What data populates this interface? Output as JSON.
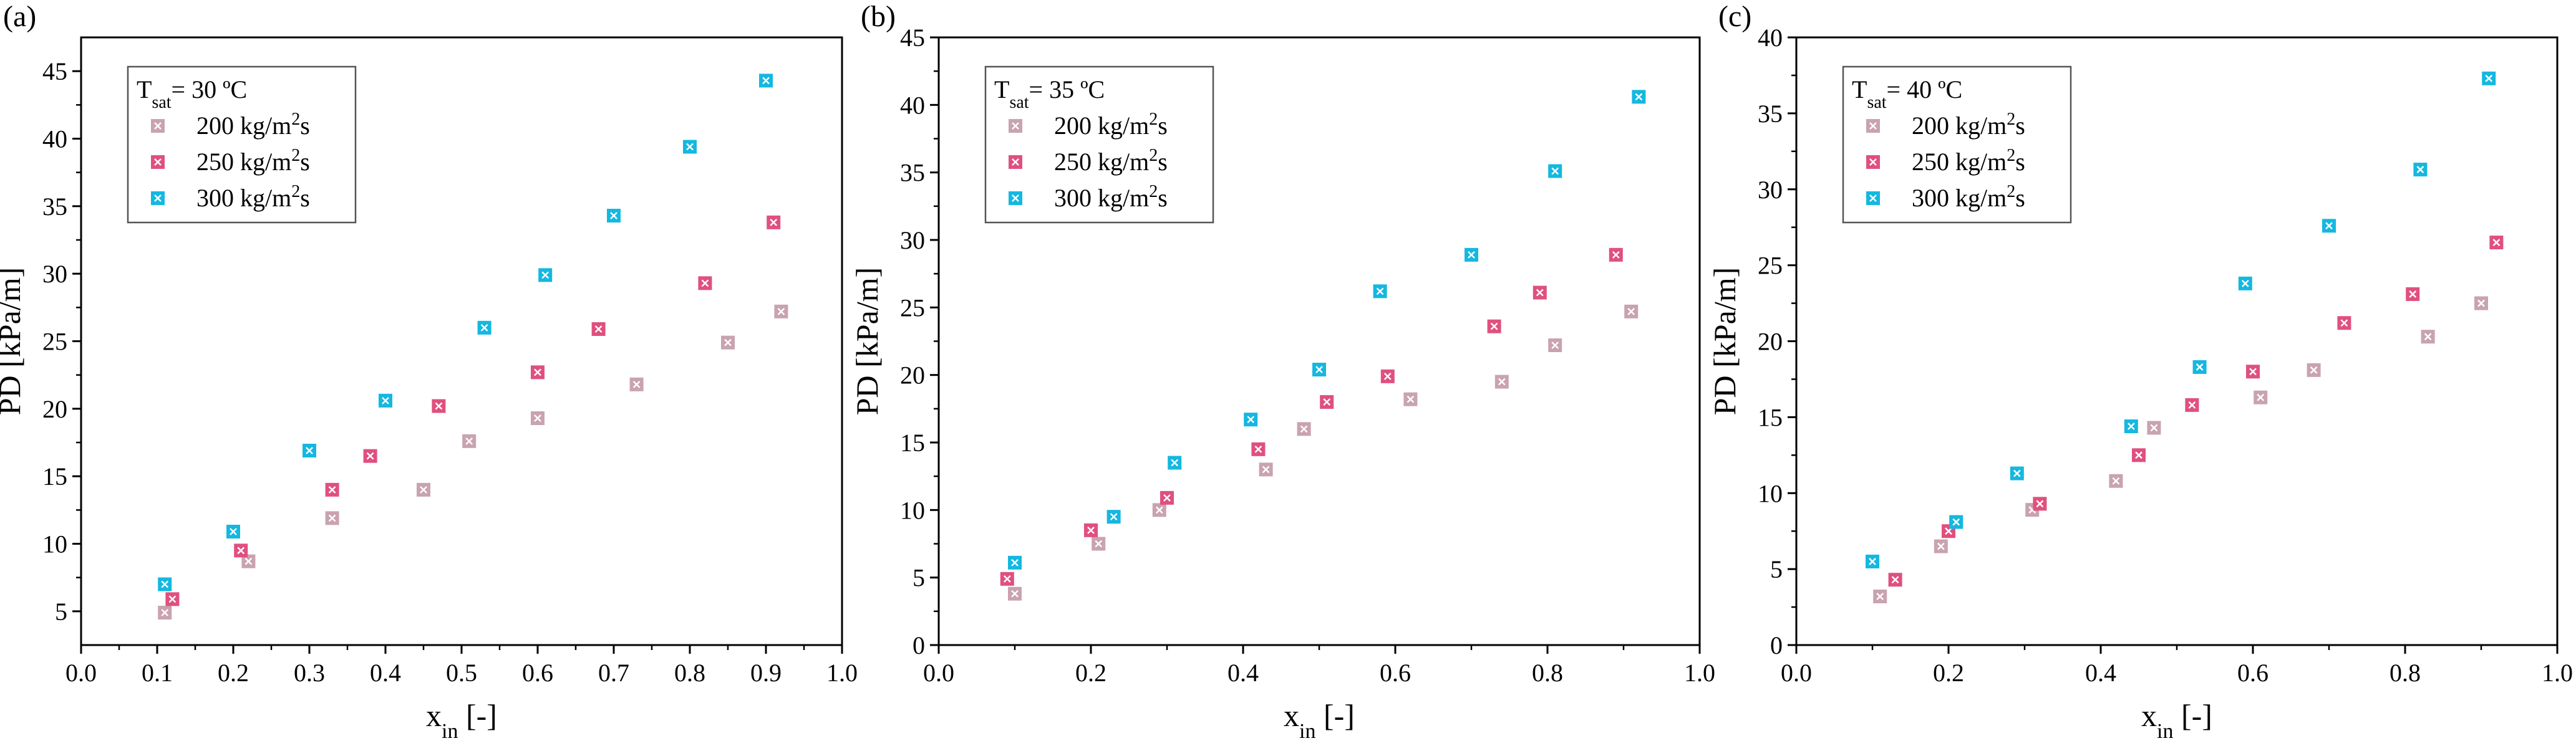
{
  "chart_data": [
    {
      "type": "scatter",
      "panel_label": "(a)",
      "legend_title": {
        "base": "T",
        "sub": "sat",
        "rest": "= 30 ºC"
      },
      "xlabel": {
        "base": "x",
        "sub": "in",
        "rest": " [-]"
      },
      "ylabel": "PD [kPa/m]",
      "xlim": [
        0.0,
        1.0
      ],
      "ylim": [
        2.5,
        47.5
      ],
      "xticks": [
        0.0,
        0.1,
        0.2,
        0.3,
        0.4,
        0.5,
        0.6,
        0.7,
        0.8,
        0.9,
        1.0
      ],
      "xtick_labels": [
        "0.0",
        "0.1",
        "0.2",
        "0.3",
        "0.4",
        "0.5",
        "0.6",
        "0.7",
        "0.8",
        "0.9",
        "1.0"
      ],
      "yticks": [
        5,
        10,
        15,
        20,
        25,
        30,
        35,
        40,
        45
      ],
      "ytick_labels": [
        "5",
        "10",
        "15",
        "20",
        "25",
        "30",
        "35",
        "40",
        "45"
      ],
      "series": [
        {
          "name": "200 kg/m2s",
          "label": {
            "pre": "200 kg/m",
            "sup": "2",
            "post": "s"
          },
          "color": "#C9A3AF",
          "x": [
            0.11,
            0.22,
            0.33,
            0.45,
            0.51,
            0.6,
            0.73,
            0.85,
            0.92
          ],
          "y": [
            4.9,
            8.7,
            11.9,
            14.0,
            17.6,
            19.3,
            21.8,
            24.9,
            27.2
          ]
        },
        {
          "name": "250 kg/m2s",
          "label": {
            "pre": "250 kg/m",
            "sup": "2",
            "post": "s"
          },
          "color": "#E0507F",
          "x": [
            0.12,
            0.21,
            0.33,
            0.38,
            0.47,
            0.6,
            0.68,
            0.82,
            0.91
          ],
          "y": [
            5.9,
            9.5,
            14.0,
            16.5,
            20.2,
            22.7,
            25.9,
            29.3,
            33.8
          ]
        },
        {
          "name": "300 kg/m2s",
          "label": {
            "pre": "300 kg/m",
            "sup": "2",
            "post": "s"
          },
          "color": "#14B8E0",
          "x": [
            0.11,
            0.2,
            0.3,
            0.4,
            0.53,
            0.61,
            0.7,
            0.8,
            0.9
          ],
          "y": [
            7.0,
            10.9,
            16.9,
            20.6,
            26.0,
            29.9,
            34.3,
            39.4,
            44.3
          ]
        }
      ]
    },
    {
      "type": "scatter",
      "panel_label": "(b)",
      "legend_title": {
        "base": "T",
        "sub": "sat",
        "rest": "= 35 ºC"
      },
      "xlabel": {
        "base": "x",
        "sub": "in",
        "rest": " [-]"
      },
      "ylabel": "PD [kPa/m]",
      "xlim": [
        0.0,
        1.0
      ],
      "ylim": [
        0,
        45
      ],
      "xticks": [
        0.0,
        0.2,
        0.4,
        0.6,
        0.8,
        1.0
      ],
      "xtick_labels": [
        "0.0",
        "0.2",
        "0.4",
        "0.6",
        "0.8",
        "1.0"
      ],
      "yticks": [
        0,
        5,
        10,
        15,
        20,
        25,
        30,
        35,
        40,
        45
      ],
      "ytick_labels": [
        "0",
        "5",
        "10",
        "15",
        "20",
        "25",
        "30",
        "35",
        "40",
        "45"
      ],
      "series": [
        {
          "name": "200 kg/m2s",
          "label": {
            "pre": "200 kg/m",
            "sup": "2",
            "post": "s"
          },
          "color": "#C9A3AF",
          "x": [
            0.1,
            0.21,
            0.29,
            0.43,
            0.48,
            0.62,
            0.74,
            0.81,
            0.91
          ],
          "y": [
            3.8,
            7.5,
            10.0,
            13.0,
            16.0,
            18.2,
            19.5,
            22.2,
            24.7
          ]
        },
        {
          "name": "250 kg/m2s",
          "label": {
            "pre": "250 kg/m",
            "sup": "2",
            "post": "s"
          },
          "color": "#E0507F",
          "x": [
            0.09,
            0.2,
            0.3,
            0.42,
            0.51,
            0.59,
            0.73,
            0.79,
            0.89
          ],
          "y": [
            4.9,
            8.5,
            10.9,
            14.5,
            18.0,
            19.9,
            23.6,
            26.1,
            28.9
          ]
        },
        {
          "name": "300 kg/m2s",
          "label": {
            "pre": "300 kg/m",
            "sup": "2",
            "post": "s"
          },
          "color": "#14B8E0",
          "x": [
            0.1,
            0.23,
            0.31,
            0.41,
            0.5,
            0.58,
            0.7,
            0.81,
            0.92
          ],
          "y": [
            6.1,
            9.5,
            13.5,
            16.7,
            20.4,
            26.2,
            28.9,
            35.1,
            40.6
          ]
        }
      ]
    },
    {
      "type": "scatter",
      "panel_label": "(c)",
      "legend_title": {
        "base": "T",
        "sub": "sat",
        "rest": "= 40 ºC"
      },
      "xlabel": {
        "base": "x",
        "sub": "in",
        "rest": " [-]"
      },
      "ylabel": "PD [kPa/m]",
      "xlim": [
        0.0,
        1.0
      ],
      "ylim": [
        0,
        40
      ],
      "xticks": [
        0.0,
        0.2,
        0.4,
        0.6,
        0.8,
        1.0
      ],
      "xtick_labels": [
        "0.0",
        "0.2",
        "0.4",
        "0.6",
        "0.8",
        "1.0"
      ],
      "yticks": [
        0,
        5,
        10,
        15,
        20,
        25,
        30,
        35,
        40
      ],
      "ytick_labels": [
        "0",
        "5",
        "10",
        "15",
        "20",
        "25",
        "30",
        "35",
        "40"
      ],
      "series": [
        {
          "name": "200 kg/m2s",
          "label": {
            "pre": "200 kg/m",
            "sup": "2",
            "post": "s"
          },
          "color": "#C9A3AF",
          "x": [
            0.11,
            0.19,
            0.31,
            0.42,
            0.47,
            0.61,
            0.68,
            0.83,
            0.9
          ],
          "y": [
            3.2,
            6.5,
            8.9,
            10.8,
            14.3,
            16.3,
            18.1,
            20.3,
            22.5
          ]
        },
        {
          "name": "250 kg/m2s",
          "label": {
            "pre": "250 kg/m",
            "sup": "2",
            "post": "s"
          },
          "color": "#E0507F",
          "x": [
            0.13,
            0.2,
            0.32,
            0.45,
            0.52,
            0.6,
            0.72,
            0.81,
            0.92
          ],
          "y": [
            4.3,
            7.5,
            9.3,
            12.5,
            15.8,
            18.0,
            21.2,
            23.1,
            26.5
          ]
        },
        {
          "name": "300 kg/m2s",
          "label": {
            "pre": "300 kg/m",
            "sup": "2",
            "post": "s"
          },
          "color": "#14B8E0",
          "x": [
            0.1,
            0.21,
            0.29,
            0.44,
            0.53,
            0.59,
            0.7,
            0.82,
            0.91
          ],
          "y": [
            5.5,
            8.1,
            11.3,
            14.4,
            18.3,
            23.8,
            27.6,
            31.3,
            37.3
          ]
        }
      ]
    }
  ]
}
